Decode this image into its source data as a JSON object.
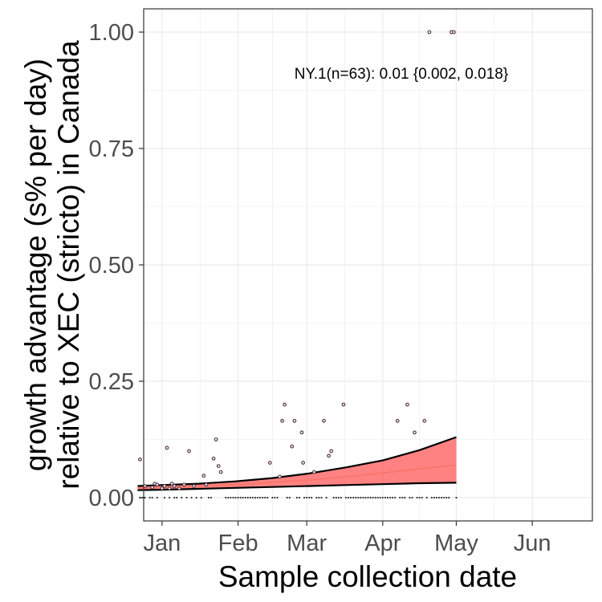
{
  "chart_data": {
    "type": "scatter",
    "title": "",
    "xlabel": "Sample collection date",
    "ylabel_line1": "growth advantage (s% per day)",
    "ylabel_line2": "relative to XEC (stricto) in Canada",
    "annotation": "NY.1(n=63): 0.01 {0.002, 0.018}",
    "xlim_days": [
      -7.5,
      175.5
    ],
    "ylim": [
      -0.05,
      1.05
    ],
    "x_ticks": [
      {
        "label": "Jan",
        "day": 0
      },
      {
        "label": "Feb",
        "day": 31
      },
      {
        "label": "Mar",
        "day": 59
      },
      {
        "label": "Apr",
        "day": 90
      },
      {
        "label": "May",
        "day": 120
      },
      {
        "label": "Jun",
        "day": 151
      }
    ],
    "y_ticks": [
      {
        "label": "0.00",
        "value": 0
      },
      {
        "label": "0.25",
        "value": 0.25
      },
      {
        "label": "0.50",
        "value": 0.5
      },
      {
        "label": "0.75",
        "value": 0.75
      },
      {
        "label": "1.00",
        "value": 1.0
      }
    ],
    "grid": true,
    "colors": {
      "fit_line": "#f8766d",
      "ribbon": "#ff3f3f",
      "ribbon_border": "#000000",
      "point_stroke": "#5a3a4a",
      "zero_point": "#333333"
    },
    "fit": {
      "x": [
        -10,
        0,
        15,
        30,
        45,
        60,
        75,
        90,
        105,
        120
      ],
      "y": [
        0.02,
        0.022,
        0.025,
        0.028,
        0.033,
        0.038,
        0.045,
        0.053,
        0.062,
        0.07
      ],
      "lower": [
        0.016,
        0.017,
        0.019,
        0.021,
        0.023,
        0.025,
        0.027,
        0.029,
        0.031,
        0.032
      ],
      "upper": [
        0.025,
        0.027,
        0.03,
        0.035,
        0.042,
        0.052,
        0.065,
        0.08,
        0.102,
        0.13
      ]
    },
    "points": [
      {
        "x": -9,
        "y": 0.082
      },
      {
        "x": -7,
        "y": 0.025
      },
      {
        "x": -4,
        "y": 0.022
      },
      {
        "x": -3,
        "y": 0.03
      },
      {
        "x": -2,
        "y": 0.028
      },
      {
        "x": 0,
        "y": 0.02
      },
      {
        "x": 1,
        "y": 0.025
      },
      {
        "x": 2,
        "y": 0.107
      },
      {
        "x": 3,
        "y": 0.02
      },
      {
        "x": 4,
        "y": 0.03
      },
      {
        "x": 5,
        "y": 0.025
      },
      {
        "x": 7,
        "y": 0.02
      },
      {
        "x": 9,
        "y": 0.028
      },
      {
        "x": 11,
        "y": 0.1
      },
      {
        "x": 13,
        "y": 0.025
      },
      {
        "x": 17,
        "y": 0.047
      },
      {
        "x": 18,
        "y": 0.028
      },
      {
        "x": 21,
        "y": 0.084
      },
      {
        "x": 22,
        "y": 0.125
      },
      {
        "x": 23,
        "y": 0.068
      },
      {
        "x": 24,
        "y": 0.055
      },
      {
        "x": 44,
        "y": 0.075
      },
      {
        "x": 48,
        "y": 0.045
      },
      {
        "x": 49,
        "y": 0.165
      },
      {
        "x": 50,
        "y": 0.2
      },
      {
        "x": 53,
        "y": 0.11
      },
      {
        "x": 54,
        "y": 0.165
      },
      {
        "x": 57,
        "y": 0.14
      },
      {
        "x": 57.5,
        "y": 0.075
      },
      {
        "x": 62,
        "y": 0.055
      },
      {
        "x": 66,
        "y": 0.165
      },
      {
        "x": 68,
        "y": 0.09
      },
      {
        "x": 69,
        "y": 0.1
      },
      {
        "x": 74,
        "y": 0.2
      },
      {
        "x": 96,
        "y": 0.165
      },
      {
        "x": 100,
        "y": 0.2
      },
      {
        "x": 103,
        "y": 0.14
      },
      {
        "x": 107,
        "y": 0.165
      },
      {
        "x": 109,
        "y": 1.0
      },
      {
        "x": 118,
        "y": 1.0
      },
      {
        "x": 119,
        "y": 1.0
      }
    ],
    "zero_points_x": [
      -9,
      -8,
      -7,
      -5,
      -4,
      -2,
      1,
      3,
      5,
      6,
      8,
      10,
      12,
      14,
      16,
      19,
      20,
      26,
      27,
      28,
      29,
      30,
      31,
      32,
      33,
      34,
      35,
      36,
      37,
      38,
      39,
      40,
      41,
      42,
      43,
      45,
      46,
      47,
      51,
      52,
      55,
      56,
      58,
      59,
      60,
      61,
      63,
      64,
      65,
      67,
      70,
      71,
      72,
      73,
      75,
      76,
      77,
      78,
      79,
      80,
      81,
      82,
      83,
      84,
      85,
      86,
      87,
      88,
      89,
      90,
      91,
      92,
      93,
      94,
      95,
      97,
      98,
      99,
      101,
      102,
      104,
      105,
      106,
      108,
      110,
      111,
      112,
      113,
      114,
      115,
      116,
      117,
      120
    ]
  }
}
